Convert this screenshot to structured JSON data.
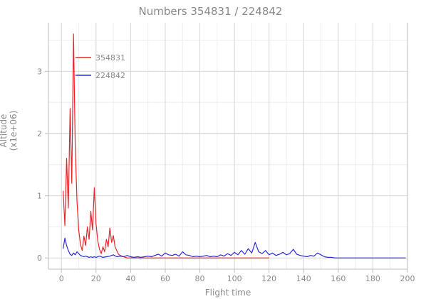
{
  "chart_data": {
    "type": "line",
    "title": "Numbers 354831 / 224842",
    "xlabel": "Flight time",
    "ylabel": "Altitude (x1e+06)",
    "xlim": [
      -7.5,
      200
    ],
    "ylim": [
      -0.18,
      3.78
    ],
    "xticks": [
      0,
      20,
      40,
      60,
      80,
      100,
      120,
      140,
      160,
      180,
      200
    ],
    "yticks": [
      0,
      1,
      2,
      3
    ],
    "grid": true,
    "legend_position": "top-left",
    "series": [
      {
        "name": "354831",
        "color": "#e8252a",
        "x": [
          1,
          2,
          3,
          4,
          5,
          6,
          7,
          8,
          9,
          10,
          11,
          12,
          13,
          14,
          15,
          16,
          17,
          18,
          19,
          20,
          21,
          22,
          23,
          24,
          25,
          26,
          27,
          28,
          29,
          30,
          31,
          32,
          33,
          34,
          35,
          36,
          37,
          38,
          40,
          45,
          50,
          60,
          70,
          80,
          90,
          100,
          110,
          120
        ],
        "y": [
          1.08,
          0.52,
          1.6,
          0.8,
          2.4,
          1.2,
          3.6,
          1.8,
          0.9,
          0.45,
          0.22,
          0.12,
          0.35,
          0.2,
          0.5,
          0.3,
          0.75,
          0.45,
          1.13,
          0.55,
          0.28,
          0.14,
          0.07,
          0.18,
          0.1,
          0.3,
          0.18,
          0.48,
          0.25,
          0.36,
          0.18,
          0.12,
          0.06,
          0.04,
          0.03,
          0.02,
          0.01,
          0.0,
          0.0,
          0.0,
          0.0,
          0.0,
          0.0,
          0.0,
          0.0,
          0.0,
          0.0,
          0.0
        ]
      },
      {
        "name": "224842",
        "color": "#2b2ddb",
        "x": [
          1,
          2,
          3,
          4,
          5,
          6,
          7,
          8,
          9,
          10,
          11,
          12,
          13,
          14,
          15,
          16,
          17,
          18,
          19,
          20,
          22,
          24,
          26,
          28,
          30,
          32,
          34,
          36,
          38,
          40,
          42,
          44,
          46,
          48,
          50,
          52,
          54,
          56,
          58,
          60,
          62,
          64,
          66,
          68,
          70,
          72,
          74,
          76,
          78,
          80,
          82,
          84,
          86,
          88,
          90,
          92,
          94,
          96,
          98,
          100,
          102,
          104,
          106,
          108,
          110,
          112,
          114,
          116,
          118,
          120,
          122,
          124,
          126,
          128,
          130,
          132,
          134,
          136,
          138,
          140,
          142,
          144,
          146,
          148,
          150,
          152,
          154,
          156,
          158,
          160,
          165,
          170,
          180,
          190,
          199
        ],
        "y": [
          0.15,
          0.32,
          0.2,
          0.12,
          0.06,
          0.04,
          0.08,
          0.05,
          0.1,
          0.07,
          0.04,
          0.03,
          0.02,
          0.03,
          0.02,
          0.01,
          0.02,
          0.01,
          0.02,
          0.01,
          0.03,
          0.01,
          0.02,
          0.03,
          0.05,
          0.02,
          0.03,
          0.02,
          0.04,
          0.02,
          0.01,
          0.02,
          0.01,
          0.02,
          0.03,
          0.02,
          0.04,
          0.06,
          0.03,
          0.08,
          0.05,
          0.04,
          0.06,
          0.03,
          0.1,
          0.05,
          0.04,
          0.02,
          0.03,
          0.02,
          0.03,
          0.04,
          0.02,
          0.03,
          0.02,
          0.05,
          0.03,
          0.07,
          0.04,
          0.09,
          0.05,
          0.12,
          0.06,
          0.15,
          0.08,
          0.25,
          0.1,
          0.07,
          0.12,
          0.05,
          0.08,
          0.04,
          0.06,
          0.09,
          0.05,
          0.07,
          0.14,
          0.06,
          0.04,
          0.03,
          0.02,
          0.04,
          0.03,
          0.08,
          0.05,
          0.02,
          0.01,
          0.01,
          0.0,
          0.0,
          0.0,
          0.0,
          0.0,
          0.0,
          0.0
        ]
      }
    ]
  }
}
